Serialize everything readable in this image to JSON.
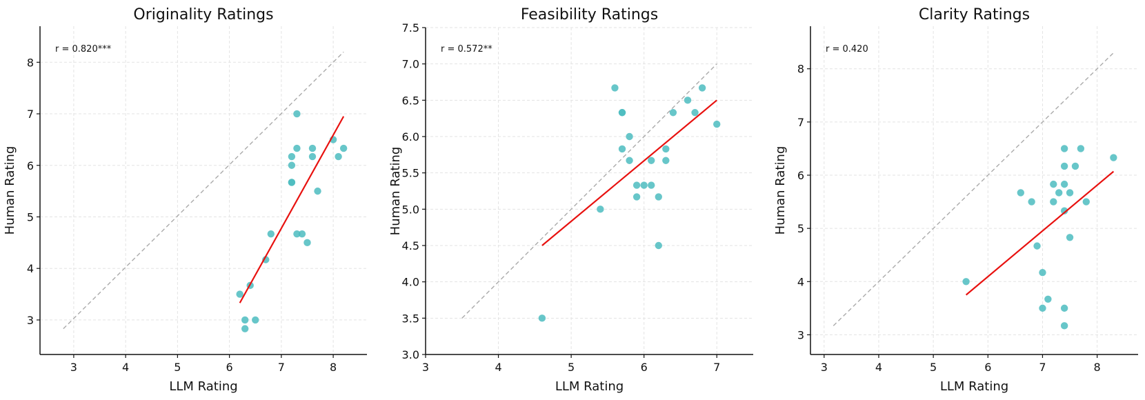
{
  "colors": {
    "point": "#4cbcbf",
    "fit_line": "#e8110f",
    "identity_line": "#aaaaaa"
  },
  "chart_data": [
    {
      "type": "scatter",
      "title": "Originality Ratings",
      "xlabel": "LLM Rating",
      "ylabel": "Human Rating",
      "annotation": "r = 0.820***",
      "xlim": [
        2.35,
        8.65
      ],
      "ylim": [
        2.33,
        8.7
      ],
      "xticks": [
        3,
        4,
        5,
        6,
        7,
        8
      ],
      "yticks": [
        3,
        4,
        5,
        6,
        7,
        8
      ],
      "grid": true,
      "identity_line": [
        [
          2.8,
          2.83
        ],
        [
          8.2,
          8.2
        ]
      ],
      "fit_line": [
        [
          6.2,
          3.33
        ],
        [
          8.2,
          6.95
        ]
      ],
      "points": [
        [
          6.2,
          3.5
        ],
        [
          6.3,
          3.0
        ],
        [
          6.3,
          2.83
        ],
        [
          6.4,
          3.67
        ],
        [
          6.5,
          3.0
        ],
        [
          6.7,
          4.17
        ],
        [
          6.8,
          4.67
        ],
        [
          7.2,
          6.17
        ],
        [
          7.2,
          6.0
        ],
        [
          7.2,
          5.67
        ],
        [
          7.2,
          5.67
        ],
        [
          7.3,
          7.0
        ],
        [
          7.3,
          6.33
        ],
        [
          7.3,
          4.67
        ],
        [
          7.4,
          4.67
        ],
        [
          7.5,
          4.5
        ],
        [
          7.6,
          6.33
        ],
        [
          7.6,
          6.17
        ],
        [
          7.7,
          5.5
        ],
        [
          8.0,
          6.5
        ],
        [
          8.1,
          6.17
        ],
        [
          8.2,
          6.33
        ]
      ]
    },
    {
      "type": "scatter",
      "title": "Feasibility Ratings",
      "xlabel": "LLM Rating",
      "ylabel": "Human Rating",
      "annotation": "r = 0.572**",
      "xlim": [
        3.0,
        7.5
      ],
      "ylim": [
        3.0,
        7.5
      ],
      "xticks": [
        3,
        4,
        5,
        6,
        7
      ],
      "yticks": [
        3.0,
        3.5,
        4.0,
        4.5,
        5.0,
        5.5,
        6.0,
        6.5,
        7.0,
        7.5
      ],
      "ytick_labels": [
        "3.0",
        "3.5",
        "4.0",
        "4.5",
        "5.0",
        "5.5",
        "6.0",
        "6.5",
        "7.0",
        "7.5"
      ],
      "grid": true,
      "identity_line": [
        [
          3.5,
          3.5
        ],
        [
          7.0,
          7.0
        ]
      ],
      "fit_line": [
        [
          4.6,
          4.5
        ],
        [
          7.0,
          6.5
        ]
      ],
      "points": [
        [
          4.6,
          3.5
        ],
        [
          5.4,
          5.0
        ],
        [
          5.6,
          6.67
        ],
        [
          5.7,
          6.33
        ],
        [
          5.7,
          6.33
        ],
        [
          5.7,
          5.83
        ],
        [
          5.8,
          6.0
        ],
        [
          5.8,
          5.67
        ],
        [
          5.9,
          5.33
        ],
        [
          5.9,
          5.17
        ],
        [
          6.0,
          5.33
        ],
        [
          6.1,
          5.67
        ],
        [
          6.1,
          5.33
        ],
        [
          6.2,
          5.17
        ],
        [
          6.2,
          4.5
        ],
        [
          6.3,
          5.83
        ],
        [
          6.3,
          5.67
        ],
        [
          6.4,
          6.33
        ],
        [
          6.6,
          6.5
        ],
        [
          6.7,
          6.33
        ],
        [
          6.8,
          6.67
        ],
        [
          7.0,
          6.17
        ]
      ]
    },
    {
      "type": "scatter",
      "title": "Clarity Ratings",
      "xlabel": "LLM Rating",
      "ylabel": "Human Rating",
      "annotation": "r = 0.420",
      "xlim": [
        2.75,
        8.75
      ],
      "ylim": [
        2.63,
        8.8
      ],
      "xticks": [
        3,
        4,
        5,
        6,
        7,
        8
      ],
      "yticks": [
        3,
        4,
        5,
        6,
        7,
        8
      ],
      "grid": true,
      "identity_line": [
        [
          3.17,
          3.17
        ],
        [
          8.3,
          8.3
        ]
      ],
      "fit_line": [
        [
          5.6,
          3.75
        ],
        [
          8.3,
          6.07
        ]
      ],
      "points": [
        [
          5.6,
          4.0
        ],
        [
          6.6,
          5.67
        ],
        [
          6.8,
          5.5
        ],
        [
          6.9,
          4.67
        ],
        [
          7.0,
          4.17
        ],
        [
          7.0,
          3.5
        ],
        [
          7.1,
          3.67
        ],
        [
          7.2,
          5.83
        ],
        [
          7.2,
          5.5
        ],
        [
          7.3,
          5.67
        ],
        [
          7.4,
          6.5
        ],
        [
          7.4,
          6.17
        ],
        [
          7.4,
          5.83
        ],
        [
          7.4,
          5.33
        ],
        [
          7.4,
          3.5
        ],
        [
          7.4,
          3.17
        ],
        [
          7.5,
          5.67
        ],
        [
          7.5,
          4.83
        ],
        [
          7.6,
          6.17
        ],
        [
          7.7,
          6.5
        ],
        [
          7.8,
          5.5
        ],
        [
          8.3,
          6.33
        ]
      ]
    }
  ]
}
